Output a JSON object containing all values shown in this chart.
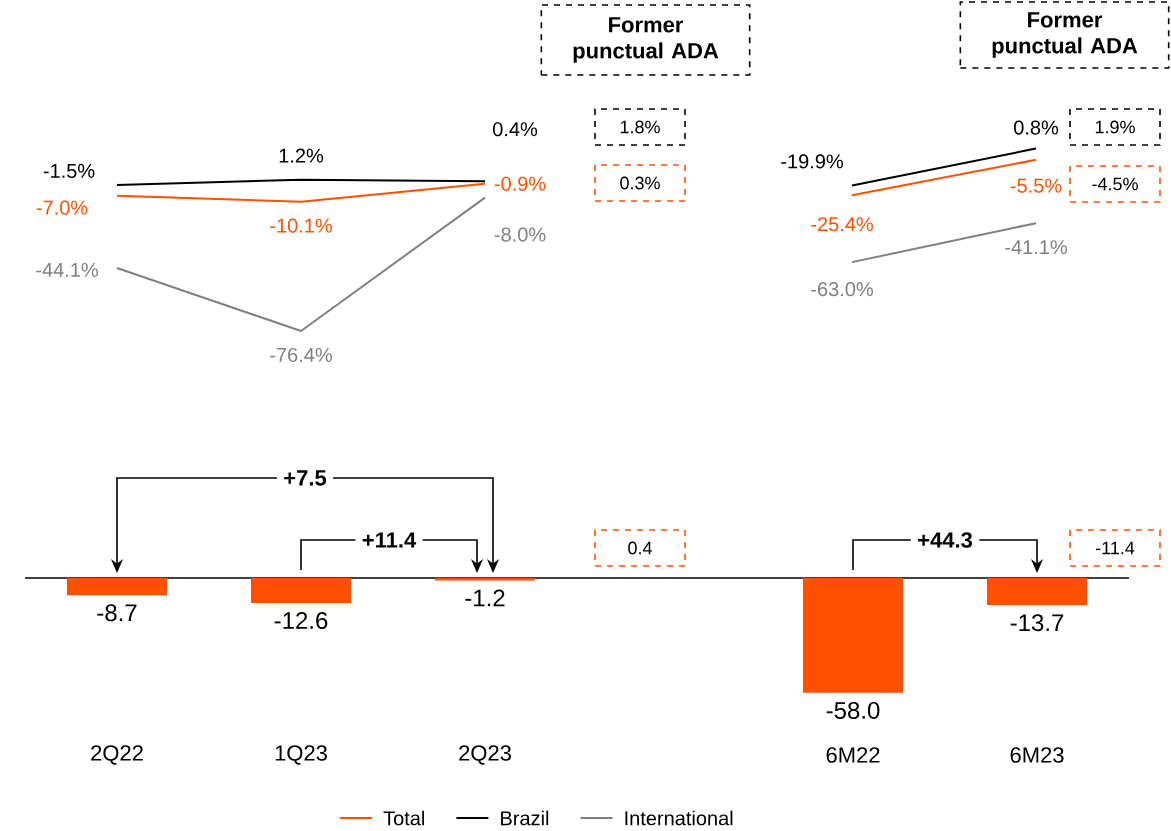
{
  "chart_data": [
    {
      "type": "line",
      "categories": [
        null,
        null,
        null
      ],
      "legend": "bottom",
      "series": [
        {
          "name": "Total",
          "color": "#ff5000",
          "values": [
            -7.0,
            -10.1,
            -0.9
          ],
          "value_labels": [
            "-7.0%",
            "-10.1%",
            "-0.9%"
          ]
        },
        {
          "name": "Brazil",
          "color": "#000000",
          "values": [
            -1.5,
            1.2,
            0.4
          ],
          "value_labels": [
            "-1.5%",
            "1.2%",
            "0.4%"
          ]
        },
        {
          "name": "International",
          "color": "#808080",
          "values": [
            -44.1,
            -76.4,
            -8.0
          ],
          "value_labels": [
            "-44.1%",
            "-76.4%",
            "-8.0%"
          ]
        }
      ],
      "annotations": [
        "Former punctual ADA",
        "1.8%",
        "0.3%"
      ]
    },
    {
      "type": "line",
      "categories": [
        null,
        null
      ],
      "series": [
        {
          "color": "#ff5000",
          "values": [
            -25.4,
            -5.5
          ],
          "value_labels": [
            "-25.4%",
            "-5.5%"
          ]
        },
        {
          "color": "#000000",
          "values": [
            -19.9,
            0.8
          ],
          "value_labels": [
            "-19.9%",
            "0.8%"
          ]
        },
        {
          "color": "#808080",
          "values": [
            -63.0,
            -41.1
          ],
          "value_labels": [
            "-63.0%",
            "-41.1%"
          ]
        }
      ],
      "annotations": [
        "Former punctual ADA",
        "1.9%",
        "-4.5%"
      ]
    },
    {
      "type": "bar",
      "categories": [
        "2Q22",
        "1Q23",
        "2Q23",
        null,
        "6M22",
        "6M23"
      ],
      "values": [
        -8.7,
        -12.6,
        -1.2,
        null,
        -58.0,
        -13.7
      ],
      "value_labels": [
        "-8.7",
        "-12.6",
        "-1.2",
        null,
        "-58.0",
        "-13.7"
      ],
      "color": "#ff5000",
      "tick_labels": "x",
      "annotations": [
        "+7.5",
        "+11.4",
        "+44.3",
        "0.4",
        "-11.4"
      ]
    }
  ]
}
